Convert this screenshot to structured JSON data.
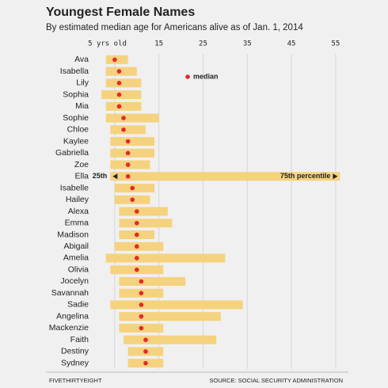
{
  "chart_data": {
    "type": "range",
    "title": "Youngest Female Names",
    "subtitle": "By estimated median age for Americans alive as of Jan. 1, 2014",
    "categories": [
      "Ava",
      "Isabella",
      "Lily",
      "Sophia",
      "Mia",
      "Sophie",
      "Chloe",
      "Kaylee",
      "Gabriella",
      "Zoe",
      "Ella",
      "Isabelle",
      "Hailey",
      "Alexa",
      "Emma",
      "Madison",
      "Abigail",
      "Amelia",
      "Olivia",
      "Jocelyn",
      "Savannah",
      "Sadie",
      "Angelina",
      "Mackenzie",
      "Faith",
      "Destiny",
      "Sydney"
    ],
    "series": [
      {
        "name": "25th",
        "color": "#f5d27e",
        "values": [
          3,
          3,
          3,
          2,
          3,
          3,
          4,
          4,
          4,
          4,
          4,
          5,
          5,
          6,
          6,
          6,
          5,
          3,
          4,
          6,
          6,
          4,
          6,
          6,
          7,
          8,
          8
        ]
      },
      {
        "name": "median",
        "color": "#e8262a",
        "values": [
          5,
          6,
          6,
          6,
          6,
          7,
          7,
          8,
          8,
          8,
          8,
          9,
          9,
          10,
          10,
          10,
          10,
          10,
          10,
          11,
          11,
          11,
          11,
          11,
          12,
          12,
          12
        ]
      },
      {
        "name": "75th percentile",
        "color": "#f5d27e",
        "values": [
          8,
          10,
          11,
          11,
          11,
          15,
          12,
          14,
          14,
          13,
          56,
          14,
          13,
          17,
          18,
          14,
          16,
          30,
          16,
          21,
          16,
          34,
          29,
          16,
          28,
          16,
          16
        ]
      }
    ],
    "xlim": [
      0,
      57
    ],
    "xticks": [
      {
        "value": 5,
        "label": "5 yrs old"
      },
      15,
      25,
      35,
      45,
      55
    ],
    "grid": true,
    "footer_left": "FIVETHIRTYEIGHT",
    "footer_right": "SOURCE: SOCIAL SECURITY ADMINISTRATION"
  }
}
